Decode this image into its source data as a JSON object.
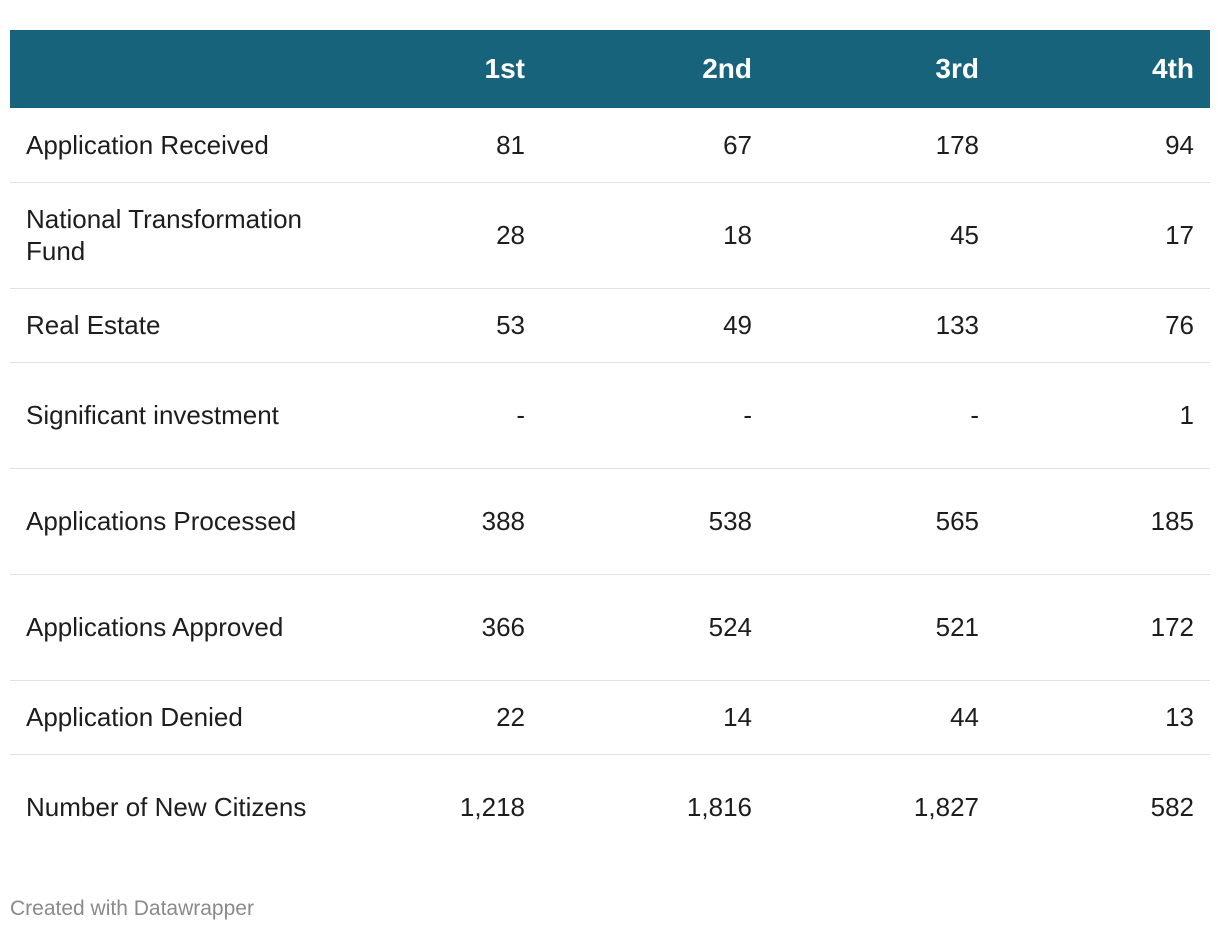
{
  "chart_data": {
    "type": "table",
    "columns": [
      "",
      "1st",
      "2nd",
      "3rd",
      "4th"
    ],
    "rows": [
      {
        "label": "Application Received",
        "values": [
          "81",
          "67",
          "178",
          "94"
        ]
      },
      {
        "label": "National Transformation Fund",
        "values": [
          "28",
          "18",
          "45",
          "17"
        ]
      },
      {
        "label": "Real Estate",
        "values": [
          "53",
          "49",
          "133",
          "76"
        ]
      },
      {
        "label": "Significant investment",
        "values": [
          "-",
          "-",
          "-",
          "1"
        ]
      },
      {
        "label": "Applications Processed",
        "values": [
          "388",
          "538",
          "565",
          "185"
        ]
      },
      {
        "label": "Applications Approved",
        "values": [
          "366",
          "524",
          "521",
          "172"
        ]
      },
      {
        "label": "Application Denied",
        "values": [
          "22",
          "14",
          "44",
          "13"
        ]
      },
      {
        "label": "Number of New Citizens",
        "values": [
          "1,218",
          "1,816",
          "1,827",
          "582"
        ]
      }
    ],
    "header_color": "#17637b"
  },
  "footer": {
    "credit": "Created with Datawrapper"
  }
}
